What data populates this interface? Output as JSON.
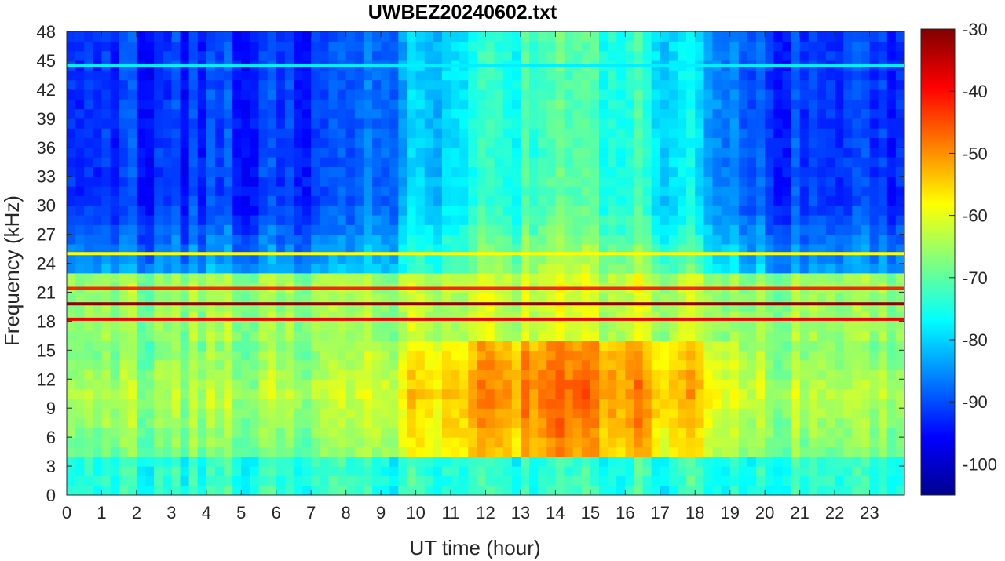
{
  "chart_data": {
    "type": "heatmap",
    "title": "UWBEZ20240602.txt",
    "xlabel": "UT time (hour)",
    "ylabel": "Frequency (kHz)",
    "xlim": [
      0,
      24
    ],
    "ylim": [
      0,
      48
    ],
    "x_ticks": [
      0,
      1,
      2,
      3,
      4,
      5,
      6,
      7,
      8,
      9,
      10,
      11,
      12,
      13,
      14,
      15,
      16,
      17,
      18,
      19,
      20,
      21,
      22,
      23
    ],
    "y_ticks": [
      0,
      3,
      6,
      9,
      12,
      15,
      18,
      21,
      24,
      27,
      30,
      33,
      36,
      39,
      42,
      45,
      48
    ],
    "colorbar": {
      "colormap": "jet",
      "range": [
        -105,
        -30
      ],
      "ticks": [
        -100,
        -90,
        -80,
        -70,
        -60,
        -50,
        -40,
        -30
      ]
    },
    "bands": [
      {
        "label": "background low band",
        "freq_range": [
          0,
          4
        ],
        "level": -76
      },
      {
        "label": "narrowband signal",
        "freq_center": 19.8,
        "level": -31
      },
      {
        "label": "narrowband signal",
        "freq_center": 18.2,
        "level": -38
      },
      {
        "label": "narrowband signal",
        "freq_center": 21.4,
        "level": -42
      },
      {
        "label": "narrowband signal",
        "freq_center": 25.0,
        "level": -58
      },
      {
        "label": "narrowband signal",
        "freq_center": 44.5,
        "level": -78
      }
    ],
    "daytime_enhancement": {
      "time_range": [
        8,
        20.5
      ],
      "freq_range": [
        5,
        16
      ],
      "peak_level": -48
    }
  }
}
